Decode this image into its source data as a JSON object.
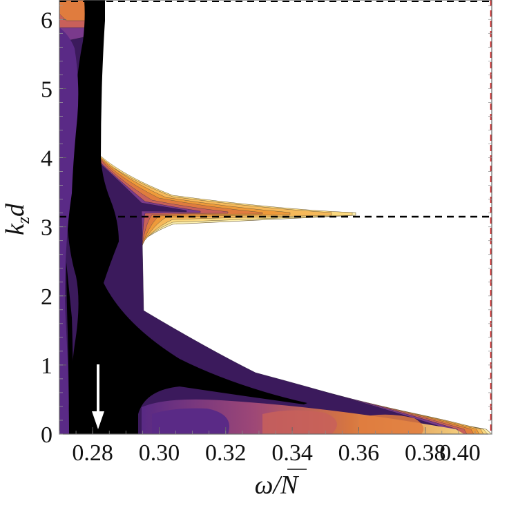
{
  "chart_data": {
    "type": "heatmap",
    "title": "",
    "xlabel_main": "ω/",
    "xlabel_sym": "N",
    "ylabel_main": "k",
    "ylabel_sub": "z",
    "ylabel_tail": "d",
    "xlim": [
      0.27,
      0.4
    ],
    "ylim": [
      0,
      6.283
    ],
    "x_ticks": [
      "0.28",
      "0.30",
      "0.32",
      "0.34",
      "0.36",
      "0.38",
      "0.40"
    ],
    "x_tick_values": [
      0.28,
      0.3,
      0.32,
      0.34,
      0.36,
      0.38,
      0.4
    ],
    "y_ticks": [
      "0",
      "1",
      "2",
      "3",
      "4",
      "5",
      "6"
    ],
    "y_tick_values": [
      0,
      1,
      2,
      3,
      4,
      5,
      6
    ],
    "reference_lines": {
      "horizontal_dashed_y": [
        3.1416,
        6.283
      ],
      "vertical_dashed_x": 0.4,
      "vertical_color": "#cc2222"
    },
    "arrow": {
      "x": 0.2825,
      "y_from": 0.98,
      "y_to": 0.05,
      "color": "#ffffff"
    },
    "palette": [
      "#000000",
      "#3b1a5c",
      "#5a2a86",
      "#7a3a8c",
      "#a34a78",
      "#c8605a",
      "#e07c3e",
      "#ef9a3a",
      "#f6b95a",
      "#fbd97f",
      "#fdf0b0"
    ],
    "grid": false,
    "legend": "none"
  }
}
